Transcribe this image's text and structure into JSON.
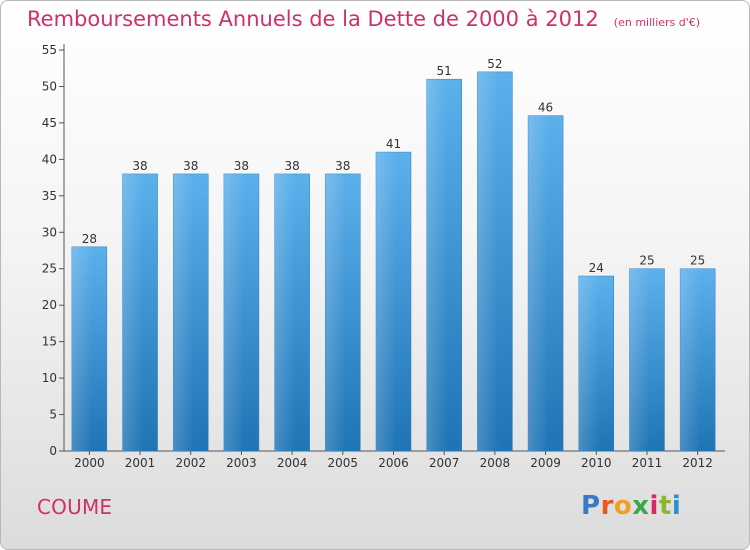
{
  "chart_data": {
    "type": "bar",
    "title": "Remboursements Annuels de la Dette de 2000 à 2012",
    "subtitle": "(en milliers d'€)",
    "categories": [
      "2000",
      "2001",
      "2002",
      "2003",
      "2004",
      "2005",
      "2006",
      "2007",
      "2008",
      "2009",
      "2010",
      "2011",
      "2012"
    ],
    "values": [
      28,
      38,
      38,
      38,
      38,
      38,
      41,
      51,
      52,
      46,
      24,
      25,
      25
    ],
    "ylim": [
      0,
      55
    ],
    "yticks": [
      0,
      5,
      10,
      15,
      20,
      25,
      30,
      35,
      40,
      45,
      50,
      55
    ],
    "grid": false,
    "bar_color": "#3a95d8",
    "title_color": "#d0306a"
  },
  "footer": {
    "commune": "COUME",
    "logo_letters": [
      "P",
      "r",
      "o",
      "x",
      "i",
      "t",
      "i"
    ]
  }
}
